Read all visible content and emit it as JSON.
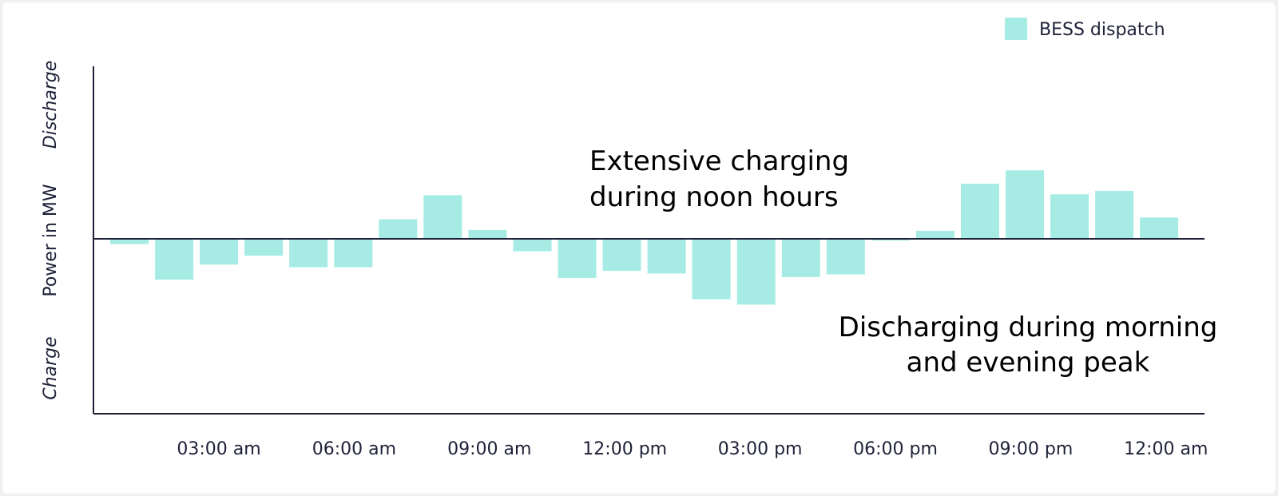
{
  "chart_data": {
    "type": "bar",
    "title": "",
    "ylabel": "Power in MW",
    "ylabel_top": "Discharge",
    "ylabel_bottom": "Charge",
    "legend": {
      "label": "BESS dispatch",
      "position": "top-right"
    },
    "colors": {
      "bar": "#a6ece4",
      "axis": "#1e2138",
      "text": "#1e2138"
    },
    "x_ticks": [
      "03:00 am",
      "06:00 am",
      "09:00 am",
      "12:00 pm",
      "03:00 pm",
      "06:00 pm",
      "09:00 pm",
      "12:00 am"
    ],
    "hours": [
      1,
      2,
      3,
      4,
      5,
      6,
      7,
      8,
      9,
      10,
      11,
      12,
      13,
      14,
      15,
      16,
      17,
      18,
      19,
      20,
      21,
      22,
      23,
      24
    ],
    "values": [
      -0.3,
      -2.3,
      -1.45,
      -0.95,
      -1.6,
      -1.6,
      1.1,
      2.45,
      0.5,
      -0.7,
      -2.2,
      -1.8,
      -1.95,
      -3.4,
      -3.7,
      -2.15,
      -2.0,
      -0.1,
      0.45,
      3.1,
      3.85,
      2.5,
      2.7,
      1.2
    ],
    "ylim": [
      -9.7,
      9.7
    ],
    "grid": false,
    "annotations": [
      {
        "lines": [
          "Extensive charging",
          "during noon hours"
        ]
      },
      {
        "lines": [
          "Discharging during morning",
          "and evening peak"
        ]
      }
    ]
  }
}
